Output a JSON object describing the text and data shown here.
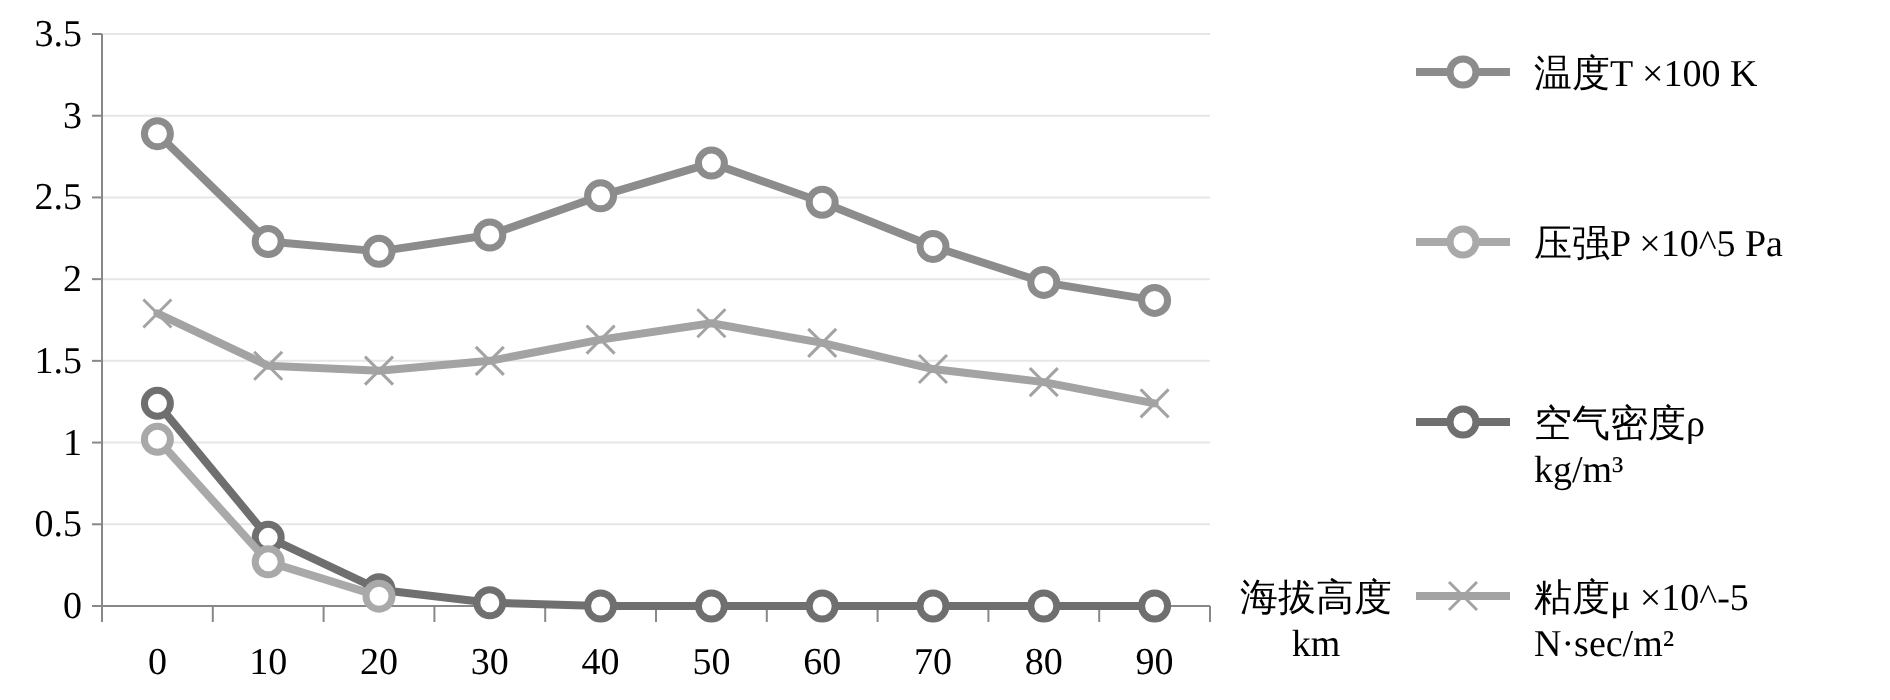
{
  "chart_data": {
    "type": "line",
    "xlabel": "海拔高度\nkm",
    "categories": [
      "0",
      "10",
      "20",
      "30",
      "40",
      "50",
      "60",
      "70",
      "80",
      "90"
    ],
    "ylim": [
      0,
      3.5
    ],
    "yticks": [
      0,
      0.5,
      1,
      1.5,
      2,
      2.5,
      3,
      3.5
    ],
    "grid": "y",
    "legend": "right",
    "series": [
      {
        "name": "温度T  ×100 K",
        "color": "#8c8c8c",
        "marker": "circle",
        "values": [
          2.89,
          2.23,
          2.17,
          2.27,
          2.51,
          2.71,
          2.47,
          2.2,
          1.98,
          1.87
        ]
      },
      {
        "name": "压强P  ×10^5 Pa",
        "color": "#a9a9a9",
        "marker": "circle",
        "values": [
          1.02,
          0.27,
          0.06,
          null,
          null,
          null,
          null,
          null,
          null,
          null
        ]
      },
      {
        "name": "空气密度ρ\nkg/m³",
        "color": "#6f6f6f",
        "marker": "circle",
        "values": [
          1.24,
          0.42,
          0.1,
          0.02,
          0.0,
          0.0,
          0.0,
          0.0,
          0.0,
          0.0
        ]
      },
      {
        "name": "粘度μ  ×10^-5\nN·sec/m²",
        "color": "#a3a3a3",
        "marker": "cross",
        "values": [
          1.79,
          1.47,
          1.44,
          1.5,
          1.63,
          1.73,
          1.61,
          1.45,
          1.37,
          1.24
        ]
      }
    ]
  }
}
